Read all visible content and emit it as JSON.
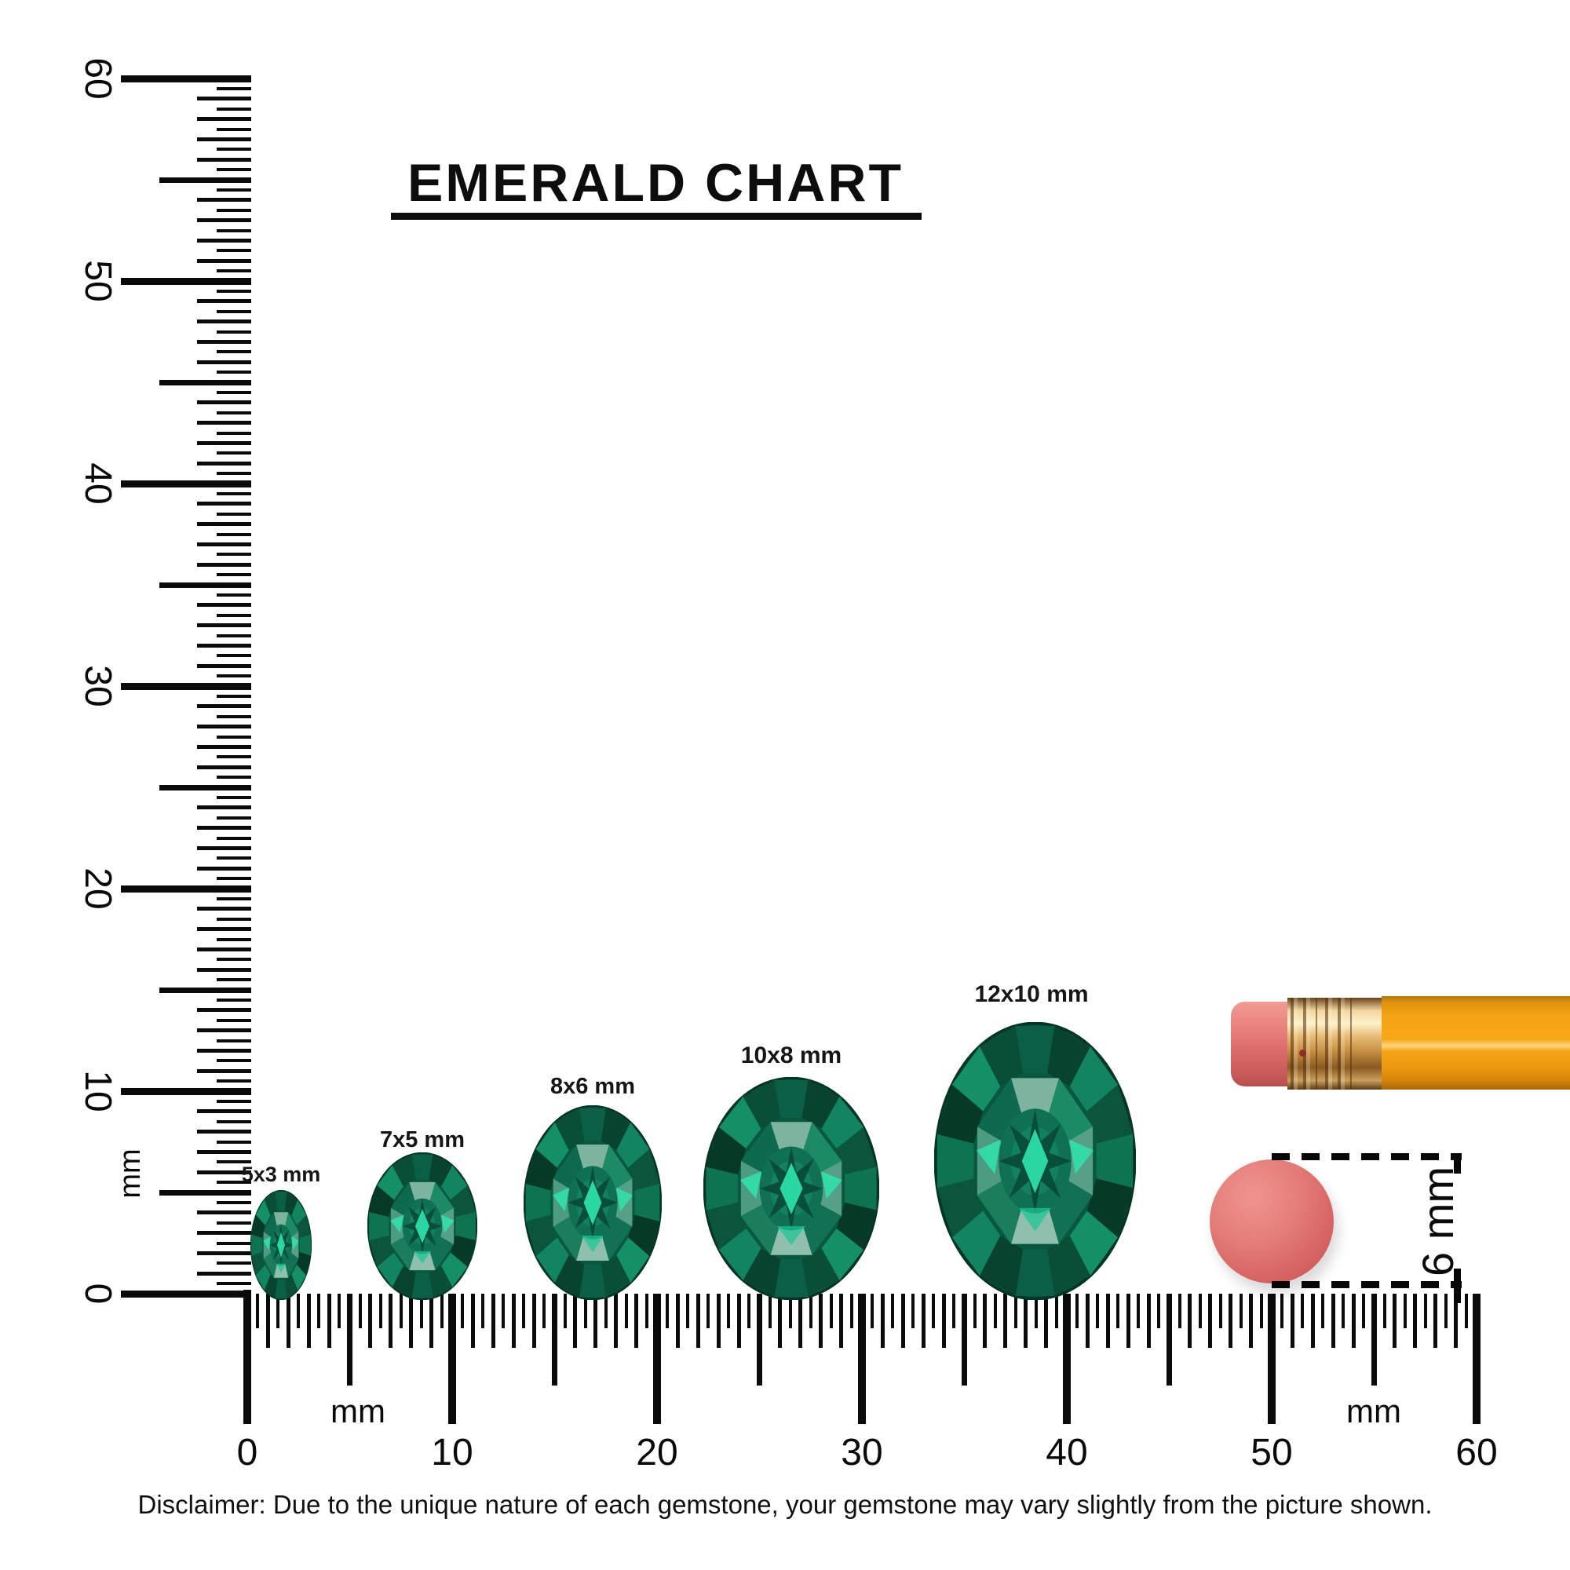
{
  "title": "EMERALD CHART",
  "chart_data": {
    "type": "table",
    "title": "EMERALD CHART",
    "unit": "mm",
    "description": "Oval emerald gemstone size reference chart against mm rulers",
    "gem_sizes": [
      {
        "label": "5x3 mm",
        "length_mm": 5,
        "width_mm": 3
      },
      {
        "label": "7x5 mm",
        "length_mm": 7,
        "width_mm": 5
      },
      {
        "label": "8x6 mm",
        "length_mm": 8,
        "width_mm": 6
      },
      {
        "label": "10x8 mm",
        "length_mm": 10,
        "width_mm": 8
      },
      {
        "label": "12x10 mm",
        "length_mm": 12,
        "width_mm": 10
      }
    ],
    "rulers": {
      "vertical_range_mm": [
        0,
        60
      ],
      "horizontal_range_mm": [
        0,
        60
      ],
      "major_tick_step_mm": 10,
      "minor_tick_step_mm": 0.5,
      "tick_labels": [
        "0",
        "10",
        "20",
        "30",
        "40",
        "50",
        "60"
      ]
    },
    "reference_object": {
      "label": "6 mm",
      "description": "pencil eraser diameter"
    }
  },
  "rulers": {
    "vertical": {
      "tick_labels": [
        "0",
        "10",
        "20",
        "30",
        "40",
        "50",
        "60"
      ],
      "unit_label": "mm"
    },
    "horizontal": {
      "tick_labels": [
        "0",
        "10",
        "20",
        "30",
        "40",
        "50",
        "60"
      ],
      "unit_label_left": "mm",
      "unit_label_right": "mm"
    }
  },
  "gems": [
    {
      "label": "5x3 mm"
    },
    {
      "label": "7x5 mm"
    },
    {
      "label": "8x6 mm"
    },
    {
      "label": "10x8 mm"
    },
    {
      "label": "12x10 mm"
    }
  ],
  "eraser_measure": {
    "label": "6 mm"
  },
  "disclaimer": "Disclaimer: Due to the unique nature of each gemstone, your gemstone may vary slightly from the picture shown.",
  "colors": {
    "ink": "#0a0a0a",
    "emerald_dark": "#0a5740",
    "emerald_mid": "#0f7a58",
    "emerald_light": "#8fc0ad",
    "emerald_flash": "#2ee3ab",
    "eraser_pink": "#d96a68",
    "pencil_orange": "#f4a316",
    "ferrule_gold": "#d9a254"
  }
}
